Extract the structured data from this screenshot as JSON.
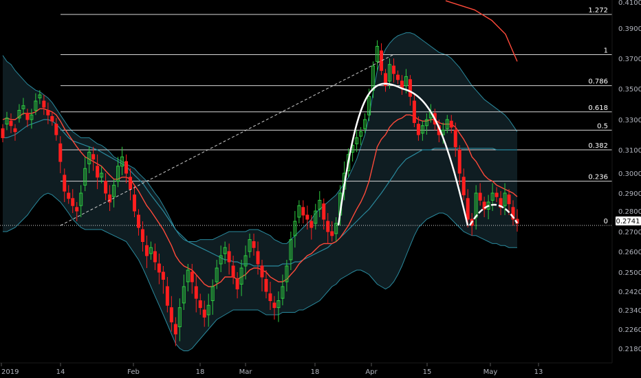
{
  "colors": {
    "background": "#000000",
    "up_candle": "#2ecc40",
    "down_candle": "#ff1f1f",
    "band_line": "#2a8a9e",
    "band_fill": "#0f1d22",
    "ma_red": "#ff4a3a",
    "fib_line": "#d8d8d8",
    "pattern_curve": "#ffffff",
    "price_badge": "#ffffff",
    "axis_text": "#b2b5be"
  },
  "chart_data": {
    "type": "candlestick",
    "ylim": [
      0.214,
      0.411
    ],
    "y_ticks": [
      "0.4100",
      "0.3900",
      "0.3700",
      "0.3500",
      "0.3300",
      "0.3100",
      "0.3000",
      "0.2900",
      "0.2800",
      "0.2700",
      "0.2600",
      "0.2500",
      "0.2420",
      "0.2340",
      "0.2260",
      "0.2180"
    ],
    "x_ticks": [
      "2019",
      "14",
      "Feb",
      "18",
      "Mar",
      "18",
      "Apr",
      "15",
      "May",
      "13"
    ],
    "last_price": "0.2741",
    "fib_levels": [
      {
        "label": "1.272",
        "price": 0.4005
      },
      {
        "label": "1",
        "price": 0.3725
      },
      {
        "label": "0.786",
        "price": 0.352
      },
      {
        "label": "0.618",
        "price": 0.335
      },
      {
        "label": "0.5",
        "price": 0.323
      },
      {
        "label": "0.382",
        "price": 0.31
      },
      {
        "label": "0.236",
        "price": 0.296
      },
      {
        "label": "0",
        "price": 0.273
      }
    ],
    "candles_close": [
      0.318,
      0.331,
      0.326,
      0.322,
      0.336,
      0.339,
      0.33,
      0.333,
      0.342,
      0.346,
      0.338,
      0.333,
      0.329,
      0.32,
      0.305,
      0.291,
      0.287,
      0.283,
      0.28,
      0.29,
      0.302,
      0.309,
      0.306,
      0.298,
      0.3,
      0.29,
      0.285,
      0.294,
      0.303,
      0.307,
      0.3,
      0.292,
      0.28,
      0.272,
      0.265,
      0.258,
      0.262,
      0.255,
      0.25,
      0.247,
      0.236,
      0.229,
      0.224,
      0.235,
      0.244,
      0.251,
      0.246,
      0.239,
      0.235,
      0.231,
      0.236,
      0.244,
      0.252,
      0.258,
      0.262,
      0.255,
      0.248,
      0.243,
      0.252,
      0.258,
      0.266,
      0.262,
      0.254,
      0.248,
      0.242,
      0.238,
      0.235,
      0.238,
      0.244,
      0.253,
      0.266,
      0.275,
      0.283,
      0.278,
      0.276,
      0.272,
      0.28,
      0.286,
      0.276,
      0.27,
      0.268,
      0.274,
      0.29,
      0.3,
      0.308,
      0.313,
      0.318,
      0.322,
      0.33,
      0.345,
      0.365,
      0.378,
      0.362,
      0.352,
      0.366,
      0.36,
      0.356,
      0.35,
      0.358,
      0.345,
      0.328,
      0.32,
      0.326,
      0.33,
      0.335,
      0.327,
      0.32,
      0.323,
      0.33,
      0.325,
      0.312,
      0.3,
      0.289,
      0.276,
      0.273,
      0.29,
      0.286,
      0.281,
      0.285,
      0.29,
      0.288,
      0.282,
      0.29,
      0.284,
      0.276,
      0.274
    ],
    "candles_open_offset": [
      0.006,
      -0.004,
      0.003,
      0.002,
      -0.005,
      -0.002,
      0.004,
      -0.003,
      -0.006,
      -0.002,
      0.004,
      0.003,
      0.003,
      0.007,
      0.009,
      0.008,
      0.003,
      0.004,
      0.002,
      -0.007,
      -0.008,
      -0.005,
      0.002,
      0.005,
      -0.002,
      0.006,
      0.004,
      -0.006,
      -0.007,
      -0.004,
      0.005,
      0.006,
      0.009,
      0.006,
      0.006,
      0.005,
      -0.003,
      0.005,
      0.004,
      0.003,
      0.008,
      0.006,
      0.004,
      -0.008,
      -0.007,
      -0.005,
      0.004,
      0.005,
      0.003,
      0.003,
      -0.004,
      -0.006,
      -0.006,
      -0.004,
      -0.003,
      0.005,
      0.005,
      0.004,
      -0.007,
      -0.005,
      -0.006,
      0.003,
      0.006,
      0.005,
      0.005,
      0.003,
      0.002,
      -0.003,
      -0.005,
      -0.007,
      -0.01,
      -0.007,
      -0.006,
      0.004,
      0.002,
      0.003,
      -0.006,
      -0.005,
      0.008,
      0.005,
      0.002,
      -0.005,
      -0.012,
      -0.008,
      -0.007,
      -0.004,
      -0.004,
      -0.003,
      -0.006,
      -0.012,
      -0.016,
      -0.01,
      0.013,
      0.008,
      -0.011,
      0.005,
      0.003,
      0.005,
      -0.006,
      0.011,
      0.014,
      0.007,
      -0.005,
      -0.004,
      -0.004,
      0.007,
      0.006,
      -0.003,
      -0.006,
      0.004,
      0.011,
      0.01,
      0.009,
      0.011,
      0.003,
      -0.013,
      0.004,
      0.004,
      -0.004,
      -0.004,
      0.002,
      0.005,
      -0.007,
      0.005,
      0.006,
      0.002
    ],
    "upper_band": [
      0.372,
      0.368,
      0.366,
      0.362,
      0.359,
      0.356,
      0.353,
      0.351,
      0.349,
      0.348,
      0.346,
      0.344,
      0.341,
      0.337,
      0.333,
      0.329,
      0.325,
      0.322,
      0.32,
      0.318,
      0.318,
      0.318,
      0.316,
      0.314,
      0.313,
      0.311,
      0.309,
      0.307,
      0.306,
      0.305,
      0.304,
      0.303,
      0.302,
      0.3,
      0.298,
      0.296,
      0.293,
      0.29,
      0.287,
      0.283,
      0.279,
      0.275,
      0.271,
      0.268,
      0.266,
      0.265,
      0.265,
      0.265,
      0.266,
      0.266,
      0.266,
      0.266,
      0.267,
      0.268,
      0.269,
      0.27,
      0.27,
      0.27,
      0.27,
      0.27,
      0.271,
      0.271,
      0.271,
      0.27,
      0.269,
      0.268,
      0.266,
      0.265,
      0.264,
      0.264,
      0.266,
      0.268,
      0.27,
      0.272,
      0.274,
      0.276,
      0.279,
      0.281,
      0.283,
      0.285,
      0.287,
      0.289,
      0.292,
      0.295,
      0.298,
      0.302,
      0.306,
      0.312,
      0.32,
      0.332,
      0.348,
      0.362,
      0.37,
      0.376,
      0.38,
      0.383,
      0.385,
      0.386,
      0.387,
      0.387,
      0.386,
      0.384,
      0.382,
      0.38,
      0.378,
      0.376,
      0.374,
      0.373,
      0.372,
      0.37,
      0.367,
      0.364,
      0.36,
      0.356,
      0.352,
      0.349,
      0.346,
      0.343,
      0.341,
      0.339,
      0.337,
      0.335,
      0.333,
      0.33,
      0.326,
      0.322
    ],
    "lower_band": [
      0.27,
      0.27,
      0.271,
      0.272,
      0.274,
      0.276,
      0.278,
      0.281,
      0.284,
      0.287,
      0.289,
      0.29,
      0.289,
      0.287,
      0.285,
      0.282,
      0.279,
      0.276,
      0.274,
      0.272,
      0.271,
      0.271,
      0.271,
      0.271,
      0.271,
      0.27,
      0.269,
      0.268,
      0.267,
      0.266,
      0.265,
      0.262,
      0.259,
      0.256,
      0.252,
      0.248,
      0.244,
      0.24,
      0.236,
      0.232,
      0.228,
      0.224,
      0.22,
      0.218,
      0.217,
      0.217,
      0.218,
      0.22,
      0.222,
      0.224,
      0.226,
      0.228,
      0.23,
      0.231,
      0.232,
      0.233,
      0.234,
      0.234,
      0.234,
      0.234,
      0.234,
      0.234,
      0.234,
      0.233,
      0.232,
      0.232,
      0.232,
      0.232,
      0.233,
      0.233,
      0.233,
      0.233,
      0.234,
      0.234,
      0.235,
      0.236,
      0.237,
      0.238,
      0.24,
      0.242,
      0.244,
      0.245,
      0.247,
      0.248,
      0.249,
      0.25,
      0.251,
      0.251,
      0.25,
      0.249,
      0.247,
      0.245,
      0.244,
      0.243,
      0.244,
      0.246,
      0.249,
      0.253,
      0.258,
      0.263,
      0.268,
      0.272,
      0.274,
      0.276,
      0.277,
      0.278,
      0.279,
      0.279,
      0.278,
      0.276,
      0.274,
      0.272,
      0.27,
      0.269,
      0.268,
      0.268,
      0.267,
      0.266,
      0.265,
      0.264,
      0.264,
      0.263,
      0.263,
      0.262,
      0.262,
      0.262
    ],
    "basis": [
      0.318,
      0.318,
      0.319,
      0.32,
      0.322,
      0.324,
      0.326,
      0.327,
      0.328,
      0.329,
      0.33,
      0.33,
      0.329,
      0.327,
      0.324,
      0.321,
      0.318,
      0.316,
      0.315,
      0.314,
      0.313,
      0.312,
      0.311,
      0.31,
      0.309,
      0.308,
      0.307,
      0.306,
      0.305,
      0.304,
      0.303,
      0.301,
      0.299,
      0.297,
      0.295,
      0.292,
      0.289,
      0.286,
      0.283,
      0.28,
      0.277,
      0.274,
      0.271,
      0.269,
      0.267,
      0.265,
      0.264,
      0.263,
      0.262,
      0.261,
      0.26,
      0.259,
      0.258,
      0.257,
      0.256,
      0.256,
      0.255,
      0.255,
      0.254,
      0.254,
      0.254,
      0.253,
      0.253,
      0.253,
      0.253,
      0.253,
      0.253,
      0.253,
      0.254,
      0.254,
      0.254,
      0.255,
      0.255,
      0.256,
      0.257,
      0.258,
      0.259,
      0.26,
      0.261,
      0.262,
      0.264,
      0.265,
      0.267,
      0.269,
      0.271,
      0.273,
      0.275,
      0.277,
      0.279,
      0.281,
      0.284,
      0.287,
      0.29,
      0.293,
      0.296,
      0.299,
      0.302,
      0.304,
      0.306,
      0.307,
      0.308,
      0.309,
      0.31,
      0.31,
      0.31,
      0.311,
      0.311,
      0.311,
      0.311,
      0.311,
      0.311,
      0.311,
      0.311,
      0.311,
      0.311,
      0.311,
      0.311,
      0.311,
      0.311,
      0.311,
      0.31,
      0.31,
      0.31,
      0.31,
      0.31,
      0.31
    ],
    "ema_red": [
      0.33,
      0.331,
      0.33,
      0.33,
      0.332,
      0.334,
      0.334,
      0.334,
      0.335,
      0.337,
      0.337,
      0.336,
      0.335,
      0.333,
      0.329,
      0.324,
      0.32,
      0.316,
      0.312,
      0.309,
      0.307,
      0.306,
      0.305,
      0.304,
      0.303,
      0.301,
      0.299,
      0.297,
      0.297,
      0.298,
      0.298,
      0.297,
      0.294,
      0.291,
      0.287,
      0.283,
      0.28,
      0.277,
      0.274,
      0.271,
      0.267,
      0.263,
      0.258,
      0.255,
      0.253,
      0.252,
      0.251,
      0.249,
      0.247,
      0.245,
      0.244,
      0.244,
      0.245,
      0.246,
      0.248,
      0.248,
      0.248,
      0.247,
      0.248,
      0.249,
      0.251,
      0.252,
      0.252,
      0.251,
      0.25,
      0.248,
      0.247,
      0.246,
      0.246,
      0.247,
      0.249,
      0.251,
      0.254,
      0.256,
      0.258,
      0.259,
      0.261,
      0.263,
      0.264,
      0.264,
      0.264,
      0.265,
      0.267,
      0.27,
      0.273,
      0.277,
      0.281,
      0.285,
      0.29,
      0.296,
      0.304,
      0.312,
      0.317,
      0.32,
      0.325,
      0.328,
      0.33,
      0.331,
      0.333,
      0.333,
      0.332,
      0.33,
      0.329,
      0.329,
      0.33,
      0.33,
      0.328,
      0.327,
      0.327,
      0.327,
      0.325,
      0.321,
      0.317,
      0.312,
      0.307,
      0.305,
      0.302,
      0.299,
      0.297,
      0.296,
      0.294,
      0.293,
      0.292,
      0.291,
      0.29,
      0.288
    ],
    "red_overhead": [
      [
        0.411,
        0
      ],
      [
        0.404,
        1
      ],
      [
        0.396,
        2
      ],
      [
        0.386,
        3
      ],
      [
        0.368,
        4
      ]
    ],
    "trendline_dashed": {
      "from": [
        0.273,
        0
      ],
      "to": [
        0.3725,
        1
      ]
    },
    "arc_big": {
      "start": 0.273,
      "peak": 0.35,
      "end": 0.273
    },
    "arc_small": {
      "start": 0.273,
      "peak": 0.286,
      "end": 0.2741
    }
  }
}
